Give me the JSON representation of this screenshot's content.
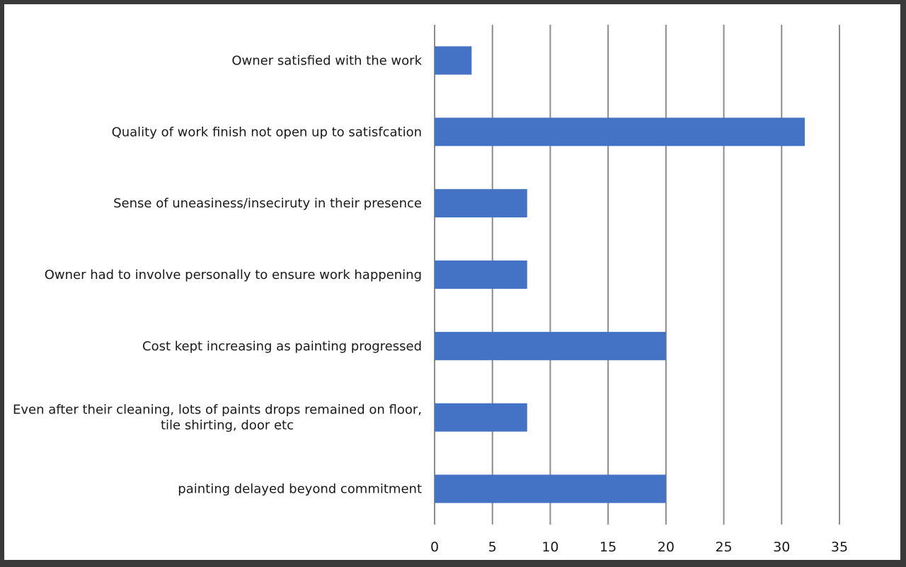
{
  "chart_data": {
    "type": "bar",
    "orientation": "horizontal",
    "categories": [
      [
        "Owner satisfied with the work"
      ],
      [
        "Quality of work finish not open up to satisfcation"
      ],
      [
        "Sense of uneasiness/inseciruty in their presence"
      ],
      [
        "Owner had to involve personally to ensure work happening"
      ],
      [
        "Cost kept increasing as painting progressed"
      ],
      [
        "Even after their cleaning, lots of paints drops remained on floor,",
        "tile shirting, door etc"
      ],
      [
        "painting delayed beyond commitment"
      ]
    ],
    "values": [
      3.2,
      32,
      8,
      8,
      20,
      8,
      20
    ],
    "xlim": [
      0,
      35
    ],
    "xticks": [
      0,
      5,
      10,
      15,
      20,
      25,
      30,
      35
    ],
    "bar_color": "#4472C4",
    "grid": "vertical",
    "title": "",
    "xlabel": "",
    "ylabel": ""
  }
}
